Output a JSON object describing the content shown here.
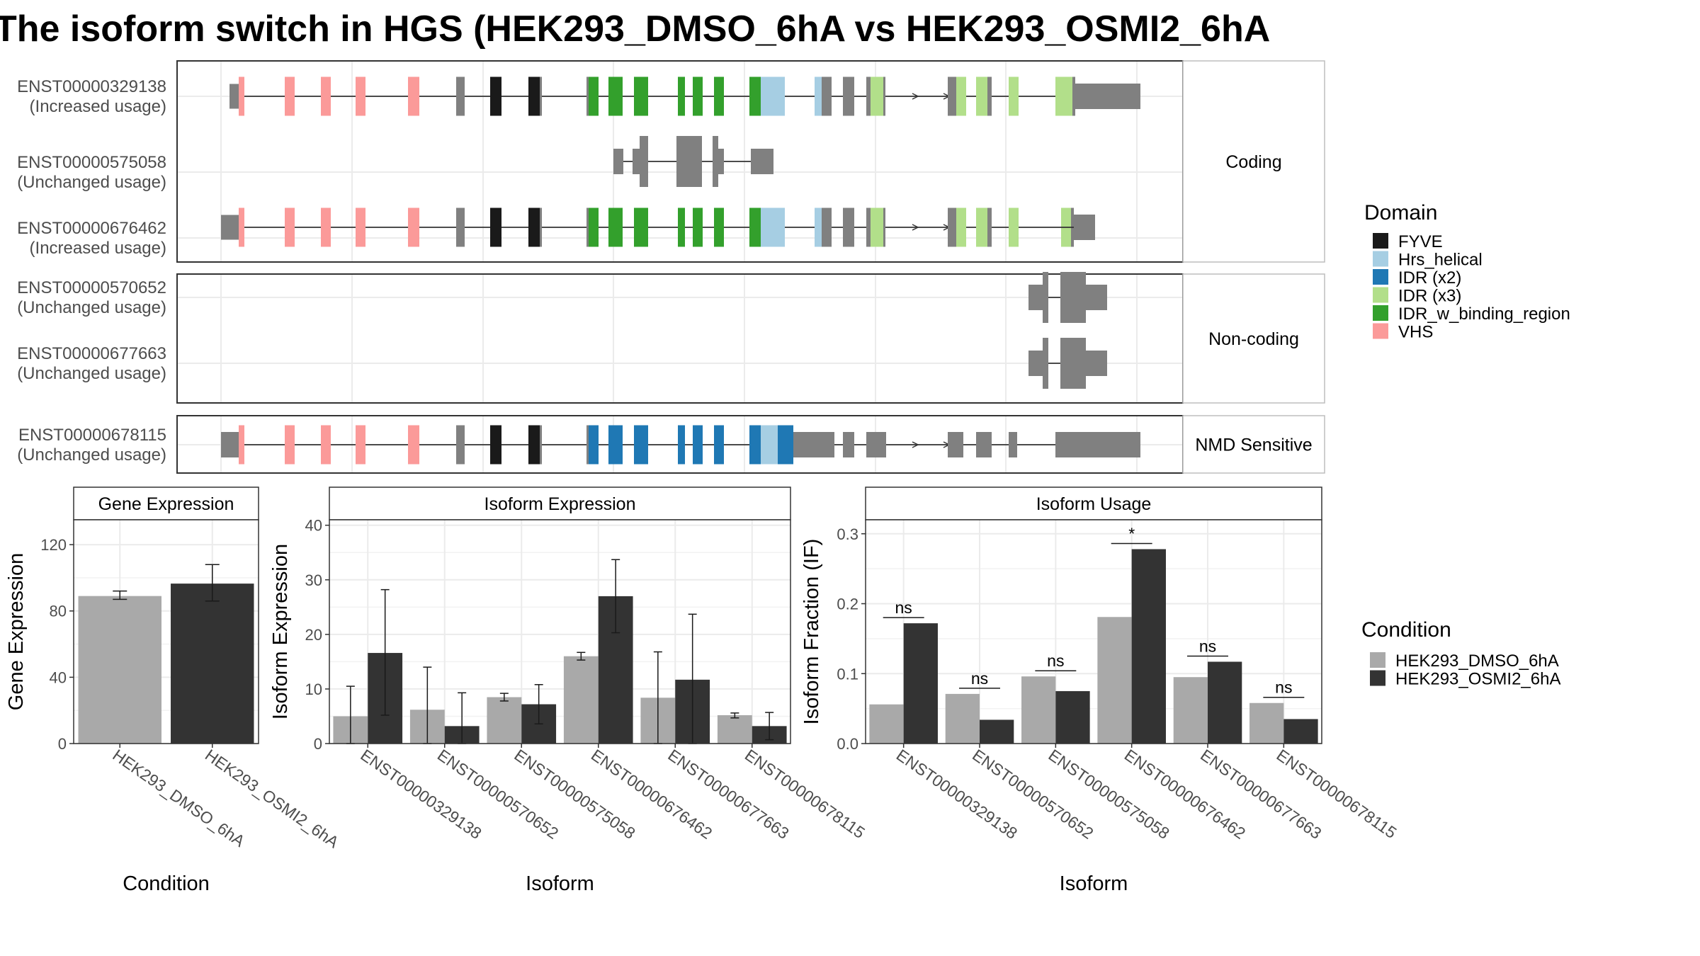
{
  "title": "The isoform switch in HGS (HEK293_DMSO_6hA vs HEK293_OSMI2_6hA",
  "colors": {
    "FYVE": "#1a1a1a",
    "Hrs_helical": "#a6cee3",
    "IDR (x2)": "#1f78b4",
    "IDR (x3)": "#b2df8a",
    "IDR_w_binding_region": "#33a02c",
    "VHS": "#fb9a99",
    "exon": "#808080",
    "DMSO": "#a9a9a9",
    "OSMI2": "#333333"
  },
  "structure": {
    "panels": [
      {
        "label": "Coding",
        "isoforms": [
          {
            "id": "ENST00000329138",
            "usage": "(Increased usage)"
          },
          {
            "id": "ENST00000575058",
            "usage": "(Unchanged usage)"
          },
          {
            "id": "ENST00000676462",
            "usage": "(Increased usage)"
          }
        ]
      },
      {
        "label": "Non-coding",
        "isoforms": [
          {
            "id": "ENST00000570652",
            "usage": "(Unchanged usage)"
          },
          {
            "id": "ENST00000677663",
            "usage": "(Unchanged usage)"
          }
        ]
      },
      {
        "label": "NMD Sensitive",
        "isoforms": [
          {
            "id": "ENST00000678115",
            "usage": "(Unchanged usage)"
          }
        ]
      }
    ]
  },
  "legend_domain": {
    "title": "Domain",
    "items": [
      "FYVE",
      "Hrs_helical",
      "IDR (x2)",
      "IDR (x3)",
      "IDR_w_binding_region",
      "VHS"
    ]
  },
  "legend_condition": {
    "title": "Condition",
    "items": [
      "HEK293_DMSO_6hA",
      "HEK293_OSMI2_6hA"
    ]
  },
  "chart_data": [
    {
      "type": "bar",
      "title": "Gene Expression",
      "xlabel": "Condition",
      "ylabel": "Gene Expression",
      "ylim": [
        0,
        135
      ],
      "yticks": [
        0,
        40,
        80,
        120
      ],
      "categories": [
        "HEK293_DMSO_6hA",
        "HEK293_OSMI2_6hA"
      ],
      "values": [
        89,
        96.5
      ],
      "errors": [
        [
          87,
          92
        ],
        [
          86,
          108
        ]
      ],
      "grid": true
    },
    {
      "type": "bar",
      "title": "Isoform Expression",
      "xlabel": "Isoform",
      "ylabel": "Isoform Expression",
      "ylim": [
        0,
        41
      ],
      "yticks": [
        0,
        10,
        20,
        30,
        40
      ],
      "categories": [
        "ENST00000329138",
        "ENST00000570652",
        "ENST00000575058",
        "ENST00000676462",
        "ENST00000677663",
        "ENST00000678115"
      ],
      "series": [
        {
          "name": "HEK293_DMSO_6hA",
          "values": [
            5,
            6.2,
            8.5,
            16,
            8.4,
            5.2
          ],
          "errors": [
            [
              0,
              10.5
            ],
            [
              0,
              14
            ],
            [
              7.8,
              9.2
            ],
            [
              15.3,
              16.7
            ],
            [
              0,
              16.8
            ],
            [
              4.7,
              5.6
            ]
          ]
        },
        {
          "name": "HEK293_OSMI2_6hA",
          "values": [
            16.6,
            3.2,
            7.2,
            27,
            11.7,
            3.2
          ],
          "errors": [
            [
              5.2,
              28.2
            ],
            [
              0,
              9.3
            ],
            [
              3.6,
              10.8
            ],
            [
              20.3,
              33.7
            ],
            [
              0,
              23.7
            ],
            [
              0.7,
              5.7
            ]
          ]
        }
      ],
      "grid": true
    },
    {
      "type": "bar",
      "title": "Isoform Usage",
      "xlabel": "Isoform",
      "ylabel": "Isoform Fraction (IF)",
      "ylim": [
        0,
        0.32
      ],
      "yticks": [
        0.0,
        0.1,
        0.2,
        0.3
      ],
      "ytick_labels": [
        "0.0",
        "0.1",
        "0.2",
        "0.3"
      ],
      "categories": [
        "ENST00000329138",
        "ENST00000570652",
        "ENST00000575058",
        "ENST00000676462",
        "ENST00000677663",
        "ENST00000678115"
      ],
      "series": [
        {
          "name": "HEK293_DMSO_6hA",
          "values": [
            0.056,
            0.071,
            0.096,
            0.181,
            0.095,
            0.058
          ]
        },
        {
          "name": "HEK293_OSMI2_6hA",
          "values": [
            0.172,
            0.034,
            0.075,
            0.278,
            0.117,
            0.035
          ]
        }
      ],
      "annotations": [
        "ns",
        "ns",
        "ns",
        "*",
        "ns",
        "ns"
      ],
      "grid": true
    }
  ]
}
